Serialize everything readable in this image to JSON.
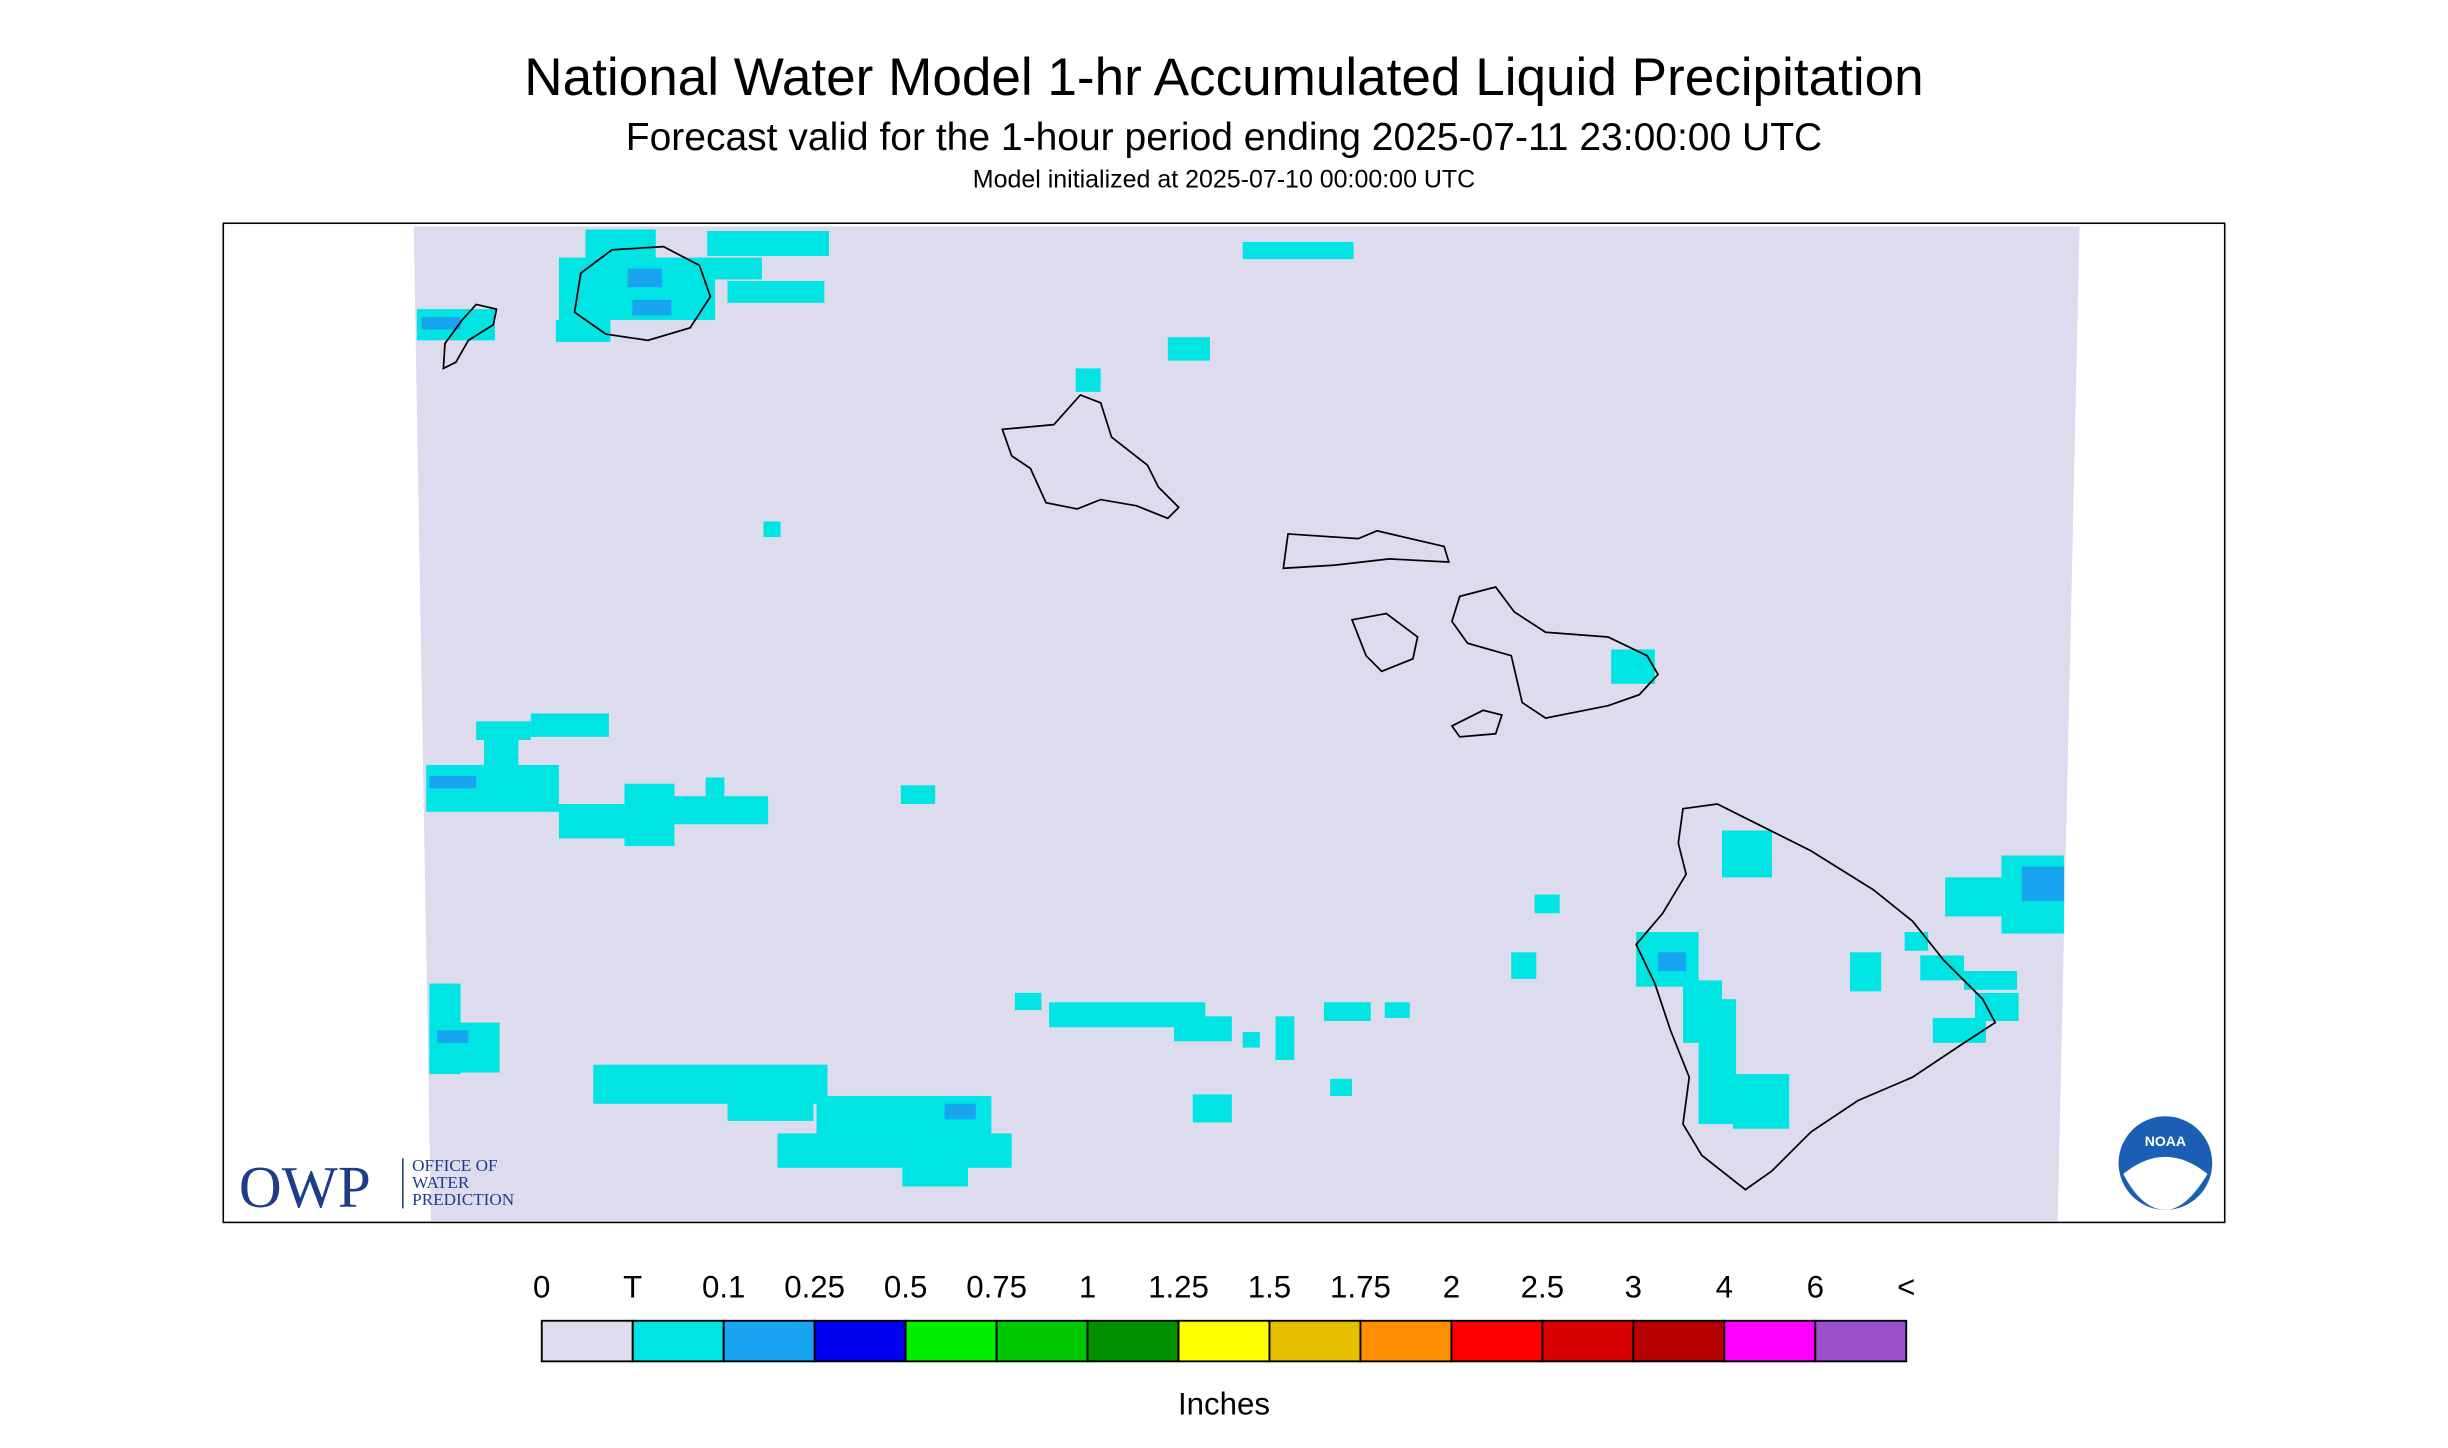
{
  "header": {
    "title": "National Water Model 1-hr Accumulated Liquid Precipitation",
    "subtitle": "Forecast valid for the 1-hour period ending 2025-07-11 23:00:00 UTC",
    "init": "Model initialized at 2025-07-10 00:00:00 UTC"
  },
  "logos": {
    "owp": "OWP",
    "owp_lines": [
      "OFFICE OF",
      "WATER",
      "PREDICTION"
    ],
    "noaa": "NOAA"
  },
  "legend": {
    "labels": [
      "0",
      "T",
      "0.1",
      "0.25",
      "0.5",
      "0.75",
      "1",
      "1.25",
      "1.5",
      "1.75",
      "2",
      "2.5",
      "3",
      "4",
      "6",
      "<"
    ],
    "colors": [
      "#dcdcee",
      "#00e4e4",
      "#18a4f0",
      "#0000f0",
      "#00f000",
      "#00c800",
      "#009000",
      "#ffff00",
      "#e6c000",
      "#ff9000",
      "#ff0000",
      "#d80000",
      "#b80000",
      "#ff00ff",
      "#9a50c8"
    ],
    "unit": "Inches"
  }
}
